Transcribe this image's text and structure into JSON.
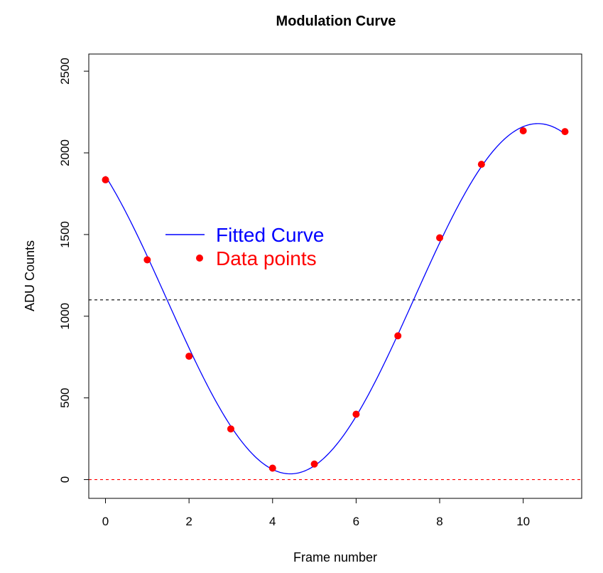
{
  "chart_data": {
    "type": "scatter",
    "title": "Modulation Curve",
    "xlabel": "Frame number",
    "ylabel": "ADU Counts",
    "xlim": [
      -0.4,
      11.4
    ],
    "ylim": [
      -115,
      2605
    ],
    "xticks": [
      0,
      2,
      4,
      6,
      8,
      10
    ],
    "yticks": [
      0,
      500,
      1000,
      1500,
      2000,
      2500
    ],
    "series": [
      {
        "name": "Data points",
        "kind": "points",
        "color": "#ff0000",
        "x": [
          0,
          1,
          2,
          3,
          4,
          5,
          6,
          7,
          8,
          9,
          10,
          11
        ],
        "y": [
          1835,
          1345,
          755,
          310,
          70,
          95,
          400,
          880,
          1480,
          1930,
          2135,
          2130
        ]
      },
      {
        "name": "Fitted Curve",
        "kind": "line",
        "color": "#0000ff",
        "model": {
          "form": "offset + amplitude * cos(2*pi*(x - peak)/period)",
          "offset": 1107,
          "amplitude": 1072,
          "period": 11.85,
          "peak": 10.35,
          "x_range": [
            0,
            11
          ]
        }
      }
    ],
    "reference_lines": [
      {
        "y": 1100,
        "color": "#000000",
        "style": "dashed"
      },
      {
        "y": 0,
        "color": "#ff0000",
        "style": "dashed"
      }
    ],
    "legend": {
      "placement": "upper-left",
      "entries": [
        {
          "label": "Fitted Curve",
          "color": "#0000ff",
          "symbol": "line"
        },
        {
          "label": "Data points",
          "color": "#ff0000",
          "symbol": "point"
        }
      ]
    }
  }
}
